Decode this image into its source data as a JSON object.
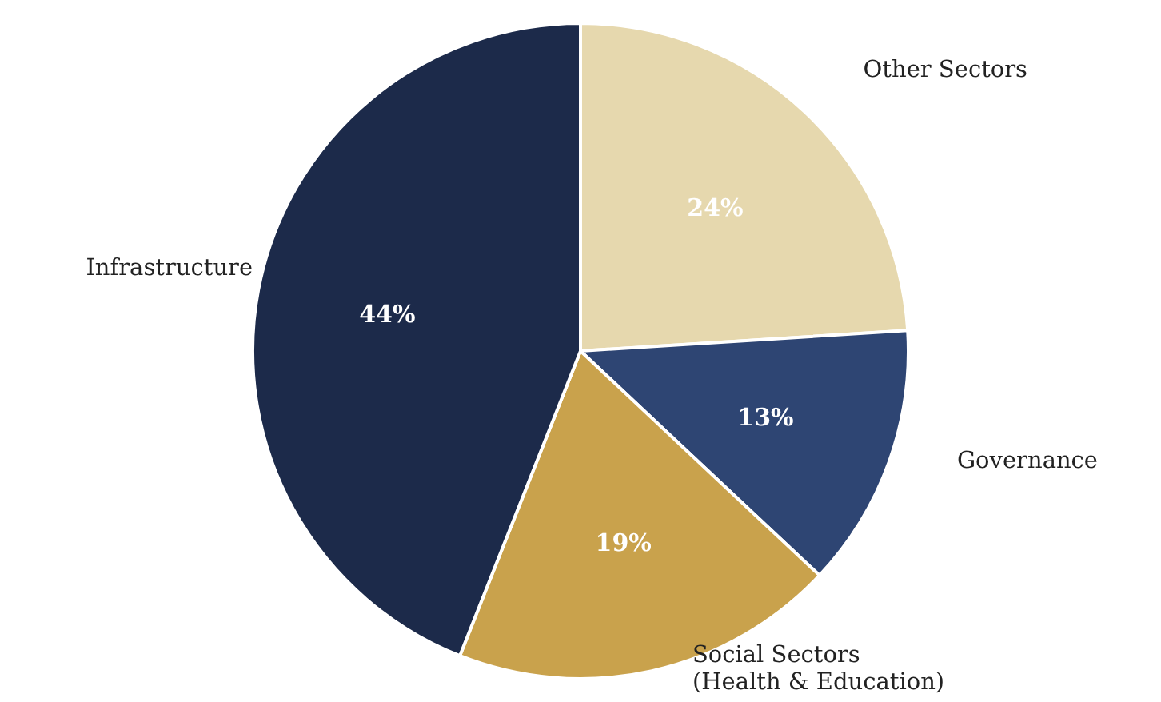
{
  "chart_data": {
    "type": "pie",
    "categories": [
      "Other Sectors",
      "Governance",
      "Social Sectors (Health & Education)",
      "Infrastructure"
    ],
    "values": [
      24,
      13,
      19,
      44
    ],
    "colors": [
      "#e6d8ae",
      "#2e4573",
      "#c9a24c",
      "#1c2a4a"
    ],
    "value_labels": [
      "24%",
      "13%",
      "19%",
      "44%"
    ]
  }
}
